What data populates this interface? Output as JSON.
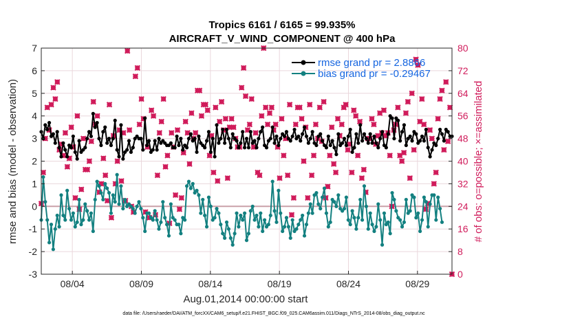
{
  "chart_data": {
    "type": "line",
    "title_line1": "Tropics 6161 / 6165 = 99.935%",
    "title_line2": "AIRCRAFT_V_WIND_COMPONENT @ 400 hPa",
    "xlabel": "Aug.01,2014 00:00:00 start",
    "ylabel": "rmse and bias (model - observation)",
    "ylabel_right": "# of obs: o=possible; ×=assimilated",
    "ylim": [
      -3,
      7
    ],
    "ylim_right": [
      0,
      80
    ],
    "xlim": [
      1.75,
      31.5
    ],
    "yticks": [
      "-3",
      "-2",
      "-1",
      "0",
      "1",
      "2",
      "3",
      "4",
      "5",
      "6",
      "7"
    ],
    "yticks_right": [
      "0",
      "8",
      "16",
      "24",
      "32",
      "40",
      "48",
      "56",
      "64",
      "72",
      "80"
    ],
    "xticks": [
      {
        "label": "08/04",
        "day": 4
      },
      {
        "label": "08/09",
        "day": 9
      },
      {
        "label": "08/14",
        "day": 14
      },
      {
        "label": "08/19",
        "day": 19
      },
      {
        "label": "08/24",
        "day": 24
      },
      {
        "label": "08/29",
        "day": 29
      }
    ],
    "legend": {
      "rmse": "rmse grand pr = 2.8866",
      "bias": "bias grand pr = -0.29467"
    },
    "colors": {
      "rmse": "#000000",
      "bias": "#138080",
      "obs": "#d01c5b",
      "zero_line": "#c9a0a8",
      "grid": "#ead7dc",
      "legend_text": "#1565e0"
    },
    "series": [
      {
        "name": "rmse",
        "values": [
          3.3,
          3.0,
          3.6,
          3.4,
          3.7,
          3.1,
          3.2,
          2.8,
          3.3,
          2.6,
          2.2,
          2.8,
          2.5,
          2.2,
          2.7,
          2.6,
          3.1,
          2.4,
          2.1,
          2.9,
          2.4,
          2.5,
          2.6,
          3.0,
          3.3,
          3.1,
          4.1,
          3.5,
          3.7,
          3.0,
          2.7,
          3.3,
          3.5,
          2.8,
          3.0,
          2.7,
          3.0,
          3.8,
          2.5,
          2.2,
          3.6,
          2.1,
          2.4,
          2.5,
          2.9,
          2.4,
          2.6,
          3.0,
          3.1,
          3.0,
          3.0,
          2.5,
          3.9,
          2.7,
          2.9,
          2.4,
          2.5,
          2.9,
          2.5,
          3.0,
          2.8,
          2.9,
          2.8,
          2.7,
          2.7,
          2.8,
          2.6,
          2.6,
          3.1,
          2.7,
          3.0,
          2.5,
          2.7,
          2.6,
          3.0,
          3.2,
          2.9,
          3.0,
          2.4,
          3.1,
          2.8,
          2.7,
          2.6,
          2.9,
          3.3,
          2.4,
          3.0,
          2.2,
          3.6,
          2.8,
          3.0,
          3.4,
          2.8,
          3.4,
          3.0,
          2.6,
          3.2,
          3.0,
          2.9,
          2.6,
          2.8,
          3.3,
          2.6,
          3.0,
          2.6,
          3.3,
          2.8,
          2.9,
          2.6,
          3.0,
          3.3,
          3.5,
          2.7,
          2.6,
          2.9,
          3.0,
          3.5,
          2.8,
          3.1,
          2.7,
          3.0,
          3.2,
          3.1,
          3.3,
          3.0,
          2.9,
          3.1,
          3.4,
          3.0,
          3.1,
          2.9,
          3.2,
          3.5,
          3.1,
          2.8,
          3.0,
          3.3,
          2.8,
          2.7,
          3.1,
          3.2,
          2.9,
          2.7,
          2.6,
          3.1,
          2.7,
          2.9,
          2.6,
          2.3,
          3.2,
          2.7,
          2.8,
          3.0,
          2.7,
          3.1,
          3.4,
          2.4,
          2.6,
          3.2,
          2.8,
          3.6,
          2.9,
          3.2,
          3.0,
          2.8,
          3.2,
          2.8,
          3.1,
          2.8,
          2.6,
          3.0,
          3.3,
          2.7,
          2.6,
          3.2,
          4.0,
          3.9,
          3.0,
          3.9,
          3.8,
          2.9,
          3.3,
          3.6,
          2.7,
          3.0,
          3.1,
          2.9,
          3.3,
          3.2,
          2.8,
          2.9,
          3.1,
          2.9,
          3.4,
          2.6,
          2.2,
          2.5,
          2.8,
          2.7,
          3.0,
          3.4,
          3.2,
          2.9,
          3.4,
          3.3,
          3.1,
          3.1
        ]
      },
      {
        "name": "bias",
        "values": [
          -0.6,
          1.3,
          0.2,
          -0.6,
          -1.6,
          -0.8,
          -1.9,
          -1.0,
          -0.4,
          -0.9,
          0.5,
          -0.4,
          -0.6,
          0.7,
          -0.1,
          -0.6,
          -0.3,
          -0.9,
          -0.7,
          0.3,
          -0.8,
          -0.6,
          0.1,
          -0.2,
          -0.6,
          -0.3,
          -1.1,
          0.3,
          1.1,
          0.9,
          0.6,
          0.3,
          1.0,
          0.8,
          0.6,
          -0.3,
          0.5,
          0.2,
          1.4,
          0.1,
          0.9,
          -0.1,
          0.3,
          0.0,
          0.1,
          0.0,
          -0.1,
          -0.3,
          0.0,
          0.2,
          -0.1,
          -0.5,
          -1.1,
          -0.3,
          -0.3,
          -0.5,
          -0.6,
          -0.2,
          -0.6,
          -1.0,
          -0.7,
          0.2,
          -0.5,
          -0.8,
          -1.3,
          0.1,
          -0.5,
          -0.6,
          -0.8,
          -0.8,
          -1.2,
          -0.5,
          -0.6,
          0.9,
          1.1,
          0.8,
          1.0,
          0.6,
          0.7,
          0.5,
          -0.3,
          0.3,
          -0.4,
          -0.9,
          0.4,
          0.0,
          -0.6,
          -0.5,
          -0.1,
          -0.3,
          -0.8,
          -1.2,
          -1.4,
          -0.7,
          -1.0,
          -1.4,
          -1.7,
          -1.2,
          -0.3,
          -0.9,
          -0.4,
          -0.6,
          -0.3,
          -1.5,
          -1.2,
          -0.2,
          0.0,
          -0.6,
          -0.4,
          -0.9,
          -0.3,
          -1.1,
          -0.6,
          -0.9,
          -0.8,
          -0.4,
          1.1,
          -0.2,
          -0.7,
          0.7,
          -0.3,
          -1.1,
          -0.9,
          -0.5,
          -0.9,
          -1.4,
          -0.6,
          -1.1,
          -1.0,
          -0.8,
          -0.6,
          -0.4,
          -1.3,
          -0.8,
          -0.3,
          0.1,
          -0.3,
          0.5,
          0.6,
          0.1,
          -0.1,
          0.4,
          0.8,
          -0.3,
          -0.9,
          -0.7,
          0.3,
          0.2,
          0.0,
          0.5,
          -0.1,
          -0.2,
          -0.1,
          0.4,
          -0.6,
          -0.8,
          -0.2,
          -0.5,
          -1.0,
          -0.5,
          0.3,
          -0.6,
          0.9,
          0.0,
          -1.0,
          -0.3,
          -0.8,
          -1.1,
          -0.9,
          0.1,
          -0.6,
          -1.7,
          -0.3,
          -0.8,
          -0.7,
          -1.2,
          0.6,
          0.3,
          -0.2,
          -0.5,
          -0.6,
          -0.9,
          -0.7,
          0.3,
          -0.3,
          -0.2,
          0.5,
          0.4,
          -0.5,
          -0.3,
          -1.1,
          -0.6,
          0.4,
          0.2,
          -0.9,
          0.1,
          0.5,
          0.5,
          -0.6,
          0.4,
          -0.1,
          -0.7
        ]
      },
      {
        "name": "obs_count",
        "axis": "right",
        "values": [
          25,
          36,
          48,
          59,
          51,
          60,
          66,
          62,
          68,
          44,
          46,
          42,
          50,
          38,
          41,
          52,
          45,
          27,
          56,
          23,
          30,
          48,
          37,
          37,
          40,
          47,
          61,
          53,
          56,
          29,
          32,
          41,
          35,
          26,
          60,
          20,
          49,
          32,
          40,
          51,
          33,
          50,
          26,
          79,
          51,
          24,
          22,
          70,
          73,
          53,
          62,
          55,
          22,
          45,
          20,
          58,
          56,
          21,
          35,
          50,
          54,
          62,
          38,
          42,
          18,
          50,
          45,
          28,
          51,
          23,
          27,
          43,
          54,
          50,
          39,
          57,
          48,
          50,
          65,
          65,
          56,
          60,
          60,
          58,
          42,
          49,
          36,
          59,
          33,
          54,
          61,
          51,
          55,
          34,
          52,
          55,
          52,
          48,
          45,
          45,
          66,
          73,
          63,
          51,
          53,
          62,
          45,
          50,
          36,
          35,
          56,
          80,
          59,
          53,
          57,
          59,
          51,
          53,
          45,
          34,
          55,
          42,
          48,
          35,
          60,
          21,
          27,
          53,
          59,
          59,
          55,
          40,
          52,
          27,
          60,
          35,
          42,
          53,
          48,
          59,
          47,
          61,
          27,
          31,
          42,
          52,
          39,
          36,
          55,
          49,
          53,
          59,
          60,
          44,
          46,
          36,
          58,
          56,
          42,
          54,
          34,
          37,
          29,
          48,
          48,
          55,
          53,
          46,
          49,
          57,
          50,
          58,
          49,
          50,
          42,
          24,
          51,
          53,
          59,
          42,
          40,
          43,
          57,
          61,
          34,
          64,
          44,
          76,
          74,
          54,
          62,
          53,
          23,
          25,
          51,
          48,
          32,
          36,
          55,
          62,
          65,
          44,
          68,
          47,
          59,
          0
        ]
      }
    ],
    "footnote": "data file: /Users/raeder/DAI/ATM_forcXX/CAM6_setup/f.e21.FHIST_BGC.f09_025.CAM6assim.011/Diags_NTrS_2014-08/obs_diag_output.nc"
  }
}
